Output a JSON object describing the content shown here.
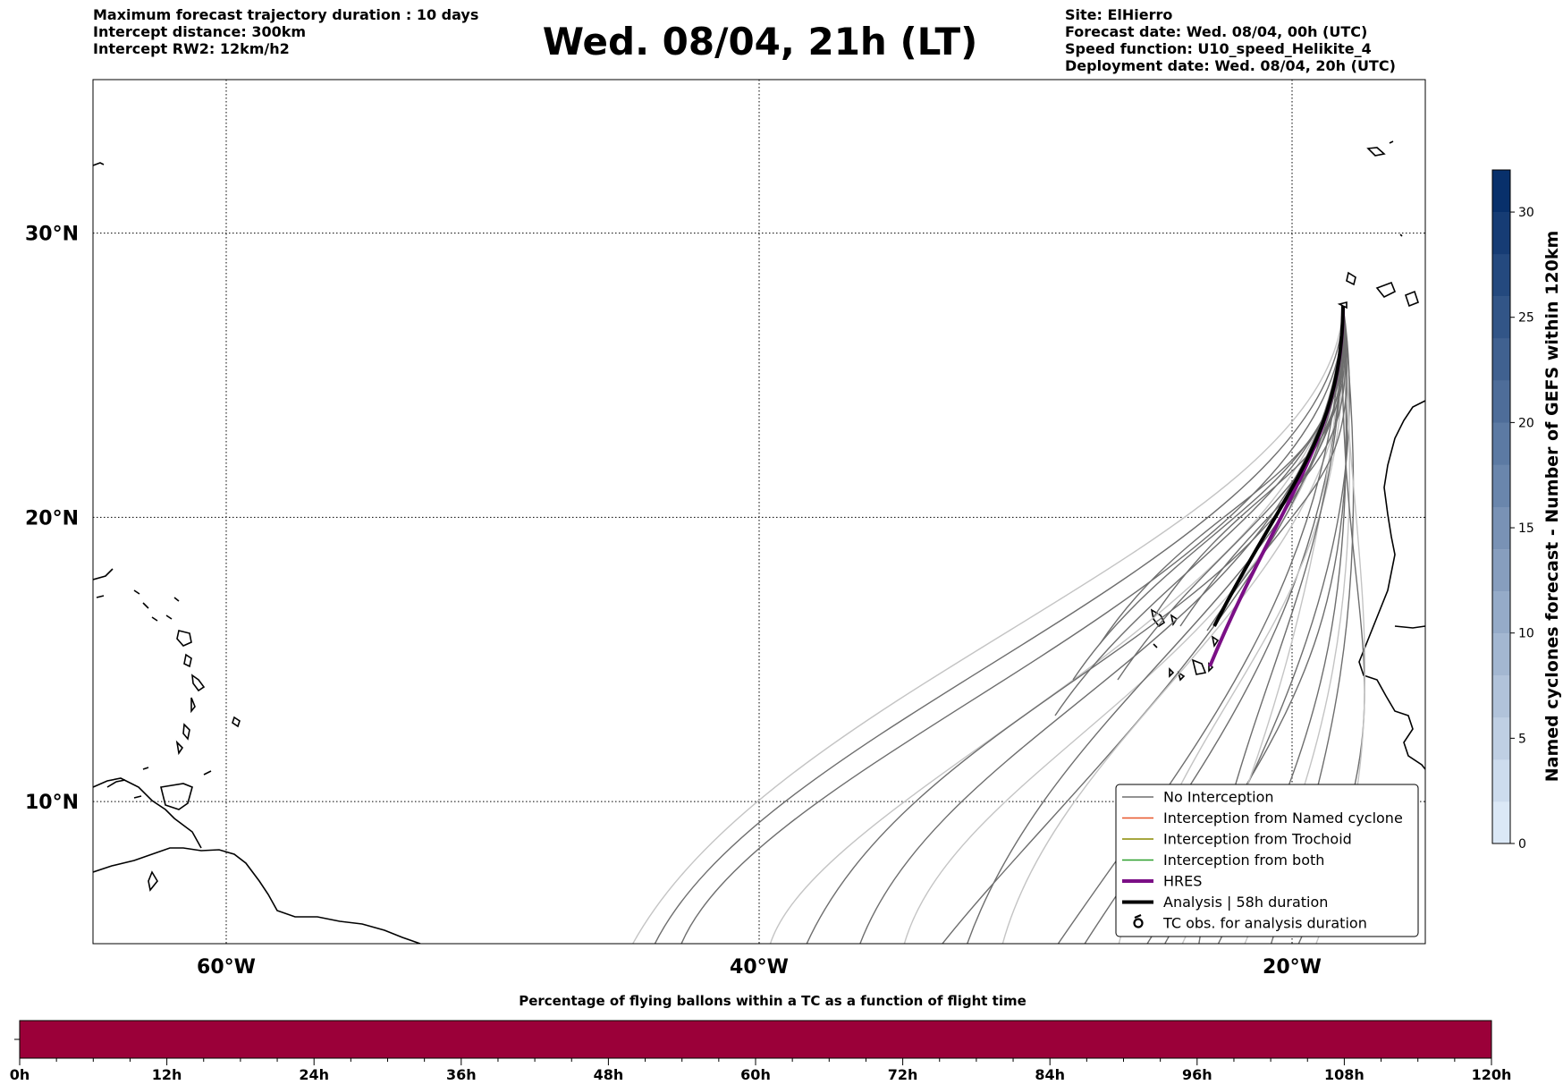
{
  "header": {
    "left_lines": [
      "Maximum forecast trajectory duration : 10 days",
      "Intercept distance: 300km",
      "Intercept RW2: 12km/h2"
    ],
    "title": "Wed. 08/04, 21h (LT)",
    "right_lines": [
      "Site: ElHierro",
      "Forecast date: Wed. 08/04, 00h (UTC)",
      "Speed function: U10_speed_Helikite_4",
      "Deployment date: Wed. 08/04, 20h (UTC)"
    ]
  },
  "map": {
    "lat_labels": [
      "30°N",
      "20°N",
      "10°N"
    ],
    "lat_values": [
      30,
      20,
      10
    ],
    "lon_labels": [
      "60°W",
      "40°W",
      "20°W"
    ],
    "lon_values": [
      -60,
      -40,
      -20
    ],
    "extent": {
      "lon_min": -65,
      "lon_max": -15,
      "lat_min": 5,
      "lat_max": 35.4
    },
    "grid": "dotted",
    "colors": {
      "no_interception": "#6e6e6e",
      "no_interception_faded": "#c4c4c4",
      "named_cyclone": "#e8562a",
      "trochoid": "#8a8a00",
      "both": "#2ca02c",
      "hres": "#7b0f86",
      "analysis": "#000000"
    }
  },
  "legend": {
    "items": [
      {
        "label": "No Interception",
        "style": "thin-gray"
      },
      {
        "label": "Interception from Named cyclone",
        "style": "thin-orange"
      },
      {
        "label": "Interception from Trochoid",
        "style": "thin-olive"
      },
      {
        "label": "Interception from both",
        "style": "thin-green"
      },
      {
        "label": "HRES",
        "style": "thick-purple"
      },
      {
        "label": "Analysis | 58h duration",
        "style": "thick-black"
      },
      {
        "label": "TC obs. for analysis duration",
        "style": "cyclone-symbol"
      }
    ]
  },
  "colorbar": {
    "label": "Named cyclones forecast - Number of GEFS within 120km",
    "ticks": [
      "0",
      "5",
      "10",
      "15",
      "20",
      "25",
      "30"
    ],
    "tick_values": [
      0,
      5,
      10,
      15,
      20,
      25,
      30
    ],
    "range": [
      0,
      32
    ]
  },
  "timebar": {
    "title": "Percentage of flying ballons within a TC as a function of flight time",
    "ticks": [
      "0h",
      "12h",
      "24h",
      "36h",
      "48h",
      "60h",
      "72h",
      "84h",
      "96h",
      "108h",
      "120h"
    ],
    "fill_color": "#9b0039",
    "fill_fraction": 1.0
  }
}
